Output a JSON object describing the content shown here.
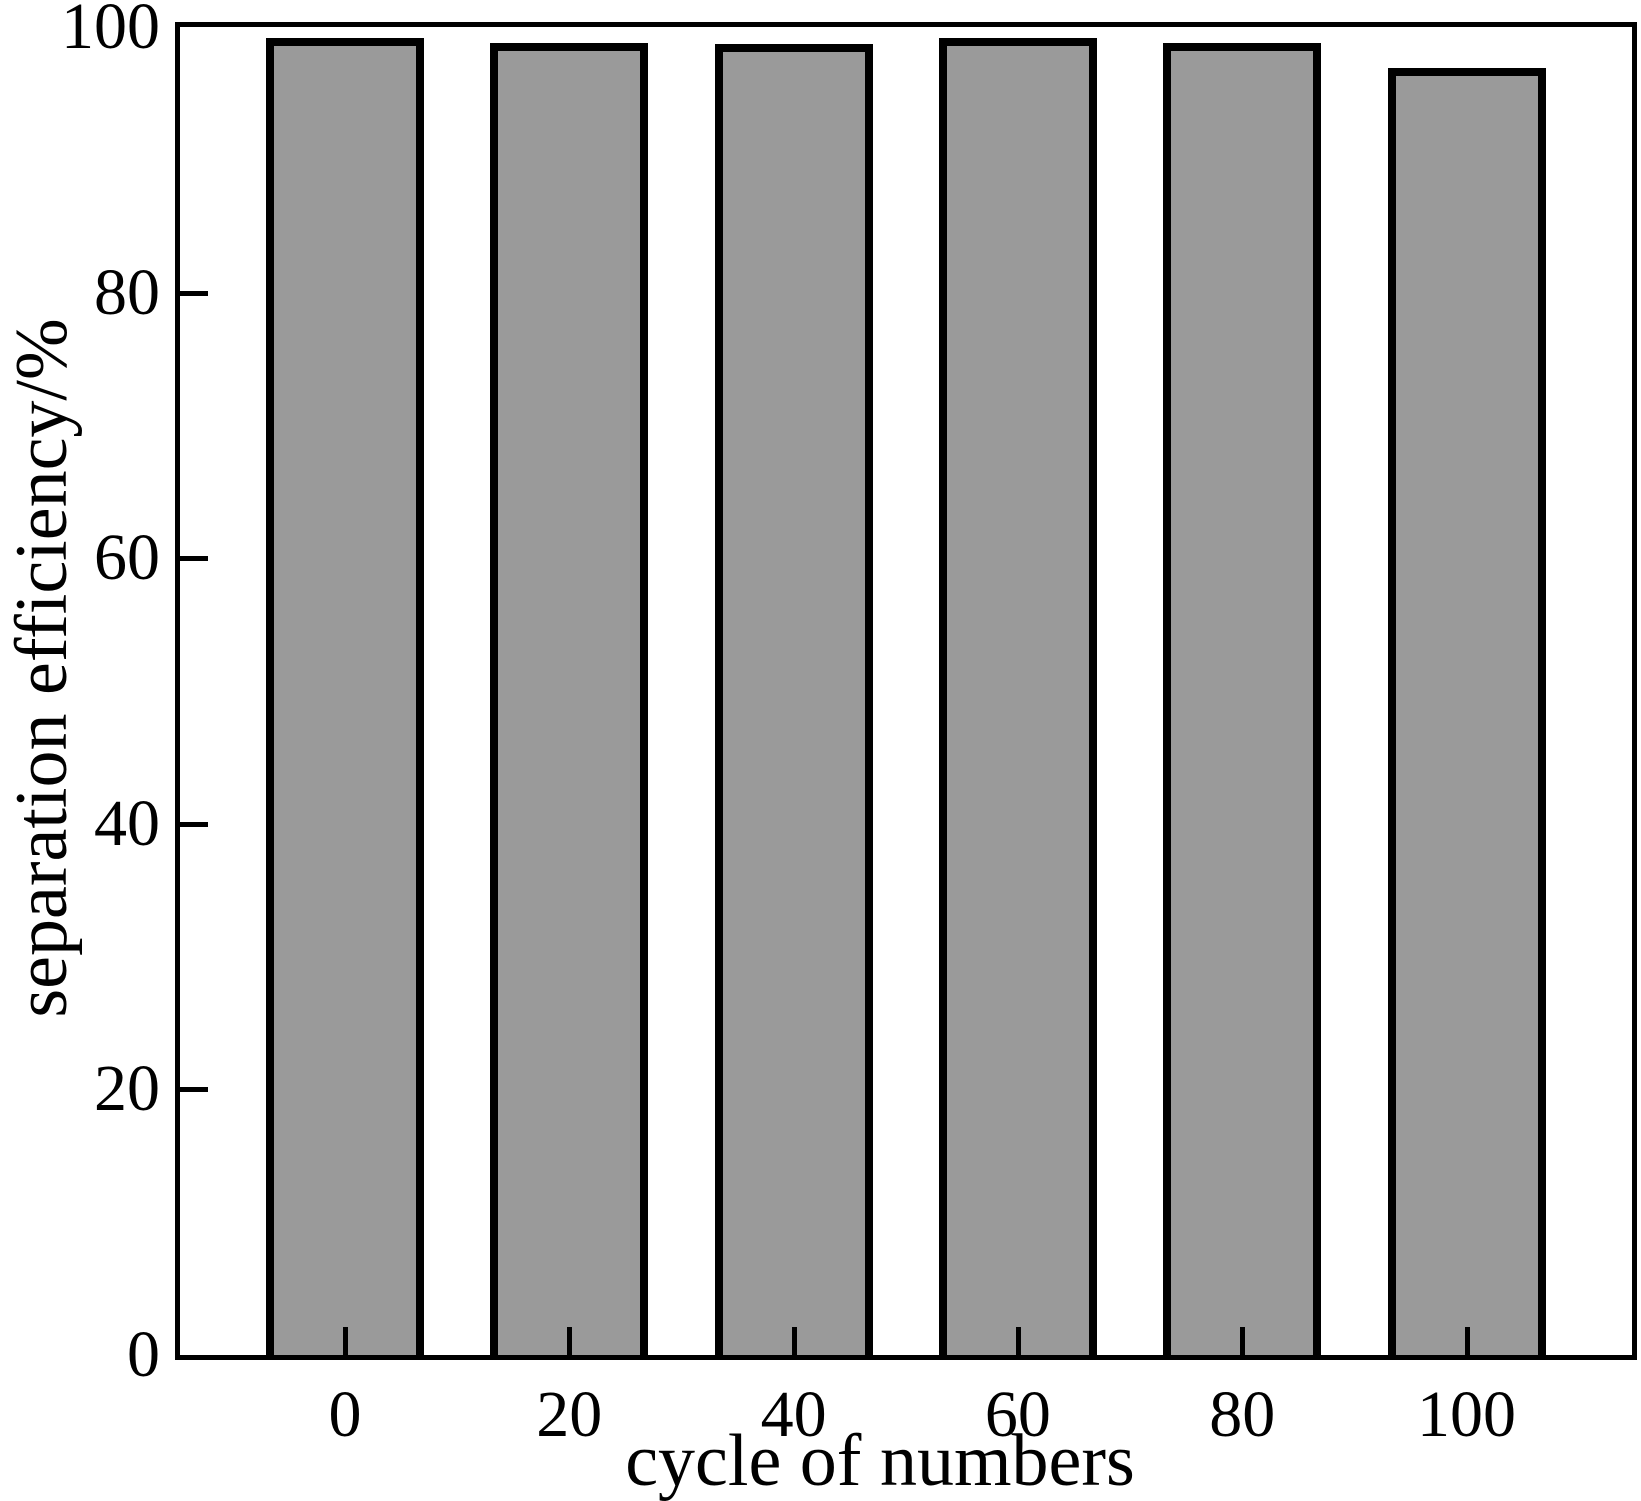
{
  "figure": {
    "background": "#ffffff",
    "frame_color": "#000000"
  },
  "chart_data": {
    "type": "bar",
    "title": "",
    "xlabel": "cycle of numbers",
    "ylabel": "separation efficiency/%",
    "categories": [
      "0",
      "20",
      "40",
      "60",
      "80",
      "100"
    ],
    "values": [
      99.2,
      98.8,
      98.7,
      99.2,
      98.8,
      96.9
    ],
    "ylim": [
      0,
      100
    ],
    "yticks": [
      0,
      20,
      40,
      60,
      80,
      100
    ],
    "grid": "off",
    "legend": "none",
    "bar_fill_color": "#9a9a9a",
    "bar_border_color": "#000000",
    "axis_color": "#000000"
  }
}
